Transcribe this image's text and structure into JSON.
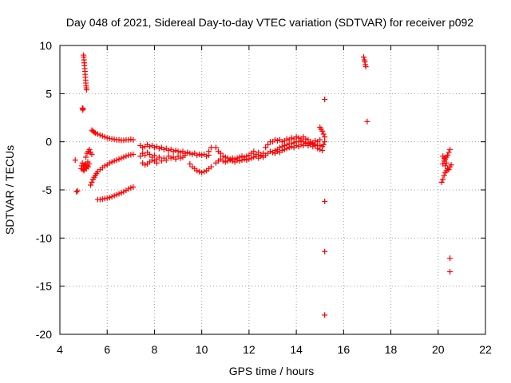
{
  "chart_data": {
    "type": "scatter",
    "title": "Day 048 of 2021, Sidereal Day-to-day VTEC variation (SDTVAR) for receiver p092",
    "xlabel": "GPS time / hours",
    "ylabel": "SDTVAR / TECUs",
    "xlim": [
      4,
      22
    ],
    "ylim": [
      -20,
      10
    ],
    "xticks": [
      "4",
      "6",
      "8",
      "10",
      "12",
      "14",
      "16",
      "18",
      "20",
      "22"
    ],
    "yticks": [
      "10",
      "5",
      "0",
      "-5",
      "-10",
      "-15",
      "-20"
    ],
    "grid": true,
    "marker": "+",
    "series": [
      {
        "name": "SDTVAR",
        "color": "#ff0000",
        "points": [
          [
            4.65,
            -1.9
          ],
          [
            4.7,
            -5.2
          ],
          [
            4.75,
            -5.1
          ],
          [
            4.9,
            -2.8
          ],
          [
            4.92,
            -2.5
          ],
          [
            4.95,
            -2.2
          ],
          [
            4.98,
            -2.9
          ],
          [
            5.0,
            -2.6
          ],
          [
            5.02,
            -3.0
          ],
          [
            5.05,
            -2.4
          ],
          [
            5.08,
            -2.7
          ],
          [
            5.1,
            -2.3
          ],
          [
            5.12,
            -2.8
          ],
          [
            5.15,
            -2.5
          ],
          [
            5.18,
            -2.1
          ],
          [
            5.2,
            -2.6
          ],
          [
            5.25,
            -2.3
          ],
          [
            4.95,
            3.5
          ],
          [
            4.97,
            3.3
          ],
          [
            4.98,
            3.4
          ],
          [
            5.0,
            9.0
          ],
          [
            5.01,
            8.8
          ],
          [
            5.02,
            8.5
          ],
          [
            5.03,
            8.2
          ],
          [
            5.04,
            7.9
          ],
          [
            5.05,
            7.6
          ],
          [
            5.06,
            7.3
          ],
          [
            5.07,
            7.0
          ],
          [
            5.08,
            6.7
          ],
          [
            5.09,
            6.4
          ],
          [
            5.1,
            6.1
          ],
          [
            5.11,
            5.8
          ],
          [
            5.12,
            5.6
          ],
          [
            5.13,
            5.4
          ],
          [
            5.1,
            -1.6
          ],
          [
            5.15,
            -1.2
          ],
          [
            5.2,
            -1.0
          ],
          [
            5.25,
            -0.8
          ],
          [
            5.3,
            -1.1
          ],
          [
            5.35,
            -1.3
          ],
          [
            5.35,
            1.2
          ],
          [
            5.4,
            1.1
          ],
          [
            5.45,
            1.0
          ],
          [
            5.5,
            0.9
          ],
          [
            5.6,
            0.8
          ],
          [
            5.7,
            0.7
          ],
          [
            5.8,
            0.6
          ],
          [
            5.9,
            0.5
          ],
          [
            6.0,
            0.4
          ],
          [
            6.1,
            0.35
          ],
          [
            6.2,
            0.3
          ],
          [
            6.3,
            0.25
          ],
          [
            6.4,
            0.2
          ],
          [
            6.5,
            0.2
          ],
          [
            6.6,
            0.15
          ],
          [
            6.7,
            0.15
          ],
          [
            6.8,
            0.2
          ],
          [
            6.9,
            0.2
          ],
          [
            7.0,
            0.25
          ],
          [
            7.1,
            0.2
          ],
          [
            5.3,
            -4.5
          ],
          [
            5.35,
            -4.2
          ],
          [
            5.4,
            -3.9
          ],
          [
            5.45,
            -3.7
          ],
          [
            5.5,
            -3.5
          ],
          [
            5.55,
            -3.3
          ],
          [
            5.6,
            -3.1
          ],
          [
            5.7,
            -2.9
          ],
          [
            5.8,
            -2.7
          ],
          [
            5.9,
            -2.5
          ],
          [
            6.0,
            -2.4
          ],
          [
            6.1,
            -2.2
          ],
          [
            6.2,
            -2.1
          ],
          [
            6.3,
            -2.0
          ],
          [
            6.4,
            -1.9
          ],
          [
            6.5,
            -1.8
          ],
          [
            6.6,
            -1.7
          ],
          [
            6.7,
            -1.6
          ],
          [
            6.8,
            -1.5
          ],
          [
            6.9,
            -1.4
          ],
          [
            7.0,
            -1.35
          ],
          [
            7.1,
            -1.3
          ],
          [
            5.6,
            -6.0
          ],
          [
            5.7,
            -6.0
          ],
          [
            5.8,
            -5.95
          ],
          [
            5.9,
            -5.9
          ],
          [
            6.0,
            -5.85
          ],
          [
            6.1,
            -5.8
          ],
          [
            6.2,
            -5.7
          ],
          [
            6.3,
            -5.6
          ],
          [
            6.4,
            -5.5
          ],
          [
            6.5,
            -5.4
          ],
          [
            6.6,
            -5.3
          ],
          [
            6.7,
            -5.2
          ],
          [
            6.8,
            -5.05
          ],
          [
            6.9,
            -4.9
          ],
          [
            7.0,
            -4.8
          ],
          [
            7.1,
            -4.7
          ],
          [
            7.4,
            -0.4
          ],
          [
            7.5,
            -0.6
          ],
          [
            7.6,
            -0.5
          ],
          [
            7.7,
            -0.3
          ],
          [
            7.8,
            -0.5
          ],
          [
            7.9,
            -0.4
          ],
          [
            8.0,
            -0.6
          ],
          [
            8.1,
            -0.5
          ],
          [
            8.2,
            -0.7
          ],
          [
            8.3,
            -0.6
          ],
          [
            8.4,
            -0.8
          ],
          [
            8.5,
            -0.7
          ],
          [
            8.6,
            -0.9
          ],
          [
            8.7,
            -0.8
          ],
          [
            8.8,
            -1.0
          ],
          [
            8.9,
            -0.9
          ],
          [
            9.0,
            -1.0
          ],
          [
            9.1,
            -1.1
          ],
          [
            9.2,
            -1.0
          ],
          [
            9.3,
            -1.2
          ],
          [
            9.4,
            -1.1
          ],
          [
            9.5,
            -1.2
          ],
          [
            9.6,
            -1.3
          ],
          [
            9.7,
            -1.2
          ],
          [
            9.8,
            -1.4
          ],
          [
            9.9,
            -1.3
          ],
          [
            10.0,
            -1.4
          ],
          [
            10.1,
            -1.3
          ],
          [
            10.2,
            -1.5
          ],
          [
            10.3,
            -1.4
          ],
          [
            7.4,
            -1.5
          ],
          [
            7.5,
            -1.2
          ],
          [
            7.6,
            -1.4
          ],
          [
            7.7,
            -1.1
          ],
          [
            7.8,
            -1.3
          ],
          [
            7.9,
            -1.6
          ],
          [
            8.0,
            -1.4
          ],
          [
            8.1,
            -1.8
          ],
          [
            8.2,
            -1.6
          ],
          [
            8.3,
            -2.0
          ],
          [
            8.4,
            -1.7
          ],
          [
            8.5,
            -1.9
          ],
          [
            8.6,
            -1.5
          ],
          [
            8.7,
            -1.7
          ],
          [
            7.5,
            -2.2
          ],
          [
            7.6,
            -2.4
          ],
          [
            7.7,
            -2.3
          ],
          [
            7.8,
            -2.1
          ],
          [
            7.9,
            -1.9
          ],
          [
            8.0,
            -2.0
          ],
          [
            8.1,
            -2.2
          ],
          [
            8.8,
            -1.6
          ],
          [
            8.9,
            -1.8
          ],
          [
            9.0,
            -1.5
          ],
          [
            9.1,
            -1.7
          ],
          [
            9.2,
            -1.6
          ],
          [
            9.3,
            -1.4
          ],
          [
            9.5,
            -2.3
          ],
          [
            9.6,
            -2.6
          ],
          [
            9.7,
            -2.8
          ],
          [
            9.8,
            -3.0
          ],
          [
            9.9,
            -3.1
          ],
          [
            10.0,
            -3.2
          ],
          [
            10.1,
            -3.1
          ],
          [
            10.2,
            -3.0
          ],
          [
            10.3,
            -2.8
          ],
          [
            10.4,
            -2.6
          ],
          [
            10.3,
            -1.0
          ],
          [
            10.4,
            -0.6
          ],
          [
            10.6,
            -0.6
          ],
          [
            10.7,
            -1.0
          ],
          [
            10.8,
            -1.2
          ],
          [
            10.9,
            -1.5
          ],
          [
            11.0,
            -1.6
          ],
          [
            11.1,
            -1.7
          ],
          [
            11.2,
            -1.8
          ],
          [
            11.3,
            -1.7
          ],
          [
            11.4,
            -1.8
          ],
          [
            11.5,
            -1.7
          ],
          [
            11.6,
            -1.6
          ],
          [
            11.7,
            -1.5
          ],
          [
            11.8,
            -1.6
          ],
          [
            11.9,
            -1.5
          ],
          [
            12.0,
            -1.4
          ],
          [
            10.6,
            -2.2
          ],
          [
            10.7,
            -2.0
          ],
          [
            10.8,
            -1.8
          ],
          [
            10.9,
            -2.0
          ],
          [
            11.0,
            -2.1
          ],
          [
            11.1,
            -2.0
          ],
          [
            11.2,
            -1.9
          ],
          [
            11.3,
            -2.0
          ],
          [
            11.4,
            -2.1
          ],
          [
            11.5,
            -1.9
          ],
          [
            11.6,
            -2.0
          ],
          [
            11.7,
            -1.9
          ],
          [
            11.8,
            -1.8
          ],
          [
            11.9,
            -1.9
          ],
          [
            12.0,
            -1.8
          ],
          [
            12.1,
            -1.7
          ],
          [
            12.1,
            -1.2
          ],
          [
            12.2,
            -1.0
          ],
          [
            12.3,
            -1.3
          ],
          [
            12.4,
            -1.1
          ],
          [
            12.5,
            -1.4
          ],
          [
            12.6,
            -1.2
          ],
          [
            12.2,
            -1.6
          ],
          [
            12.3,
            -1.5
          ],
          [
            12.4,
            -1.7
          ],
          [
            12.5,
            -1.5
          ],
          [
            12.6,
            -1.6
          ],
          [
            12.7,
            -1.4
          ],
          [
            12.8,
            -1.2
          ],
          [
            12.9,
            -1.0
          ],
          [
            13.0,
            -1.1
          ],
          [
            13.1,
            -0.9
          ],
          [
            13.2,
            -0.8
          ],
          [
            13.3,
            -0.6
          ],
          [
            13.4,
            -0.5
          ],
          [
            13.5,
            -0.4
          ],
          [
            13.6,
            -0.3
          ],
          [
            13.7,
            -0.2
          ],
          [
            13.8,
            -0.2
          ],
          [
            13.9,
            -0.1
          ],
          [
            14.0,
            0.0
          ],
          [
            14.1,
            0.0
          ],
          [
            14.2,
            0.1
          ],
          [
            14.3,
            0.0
          ],
          [
            14.4,
            -0.1
          ],
          [
            14.5,
            -0.2
          ],
          [
            14.6,
            -0.1
          ],
          [
            14.7,
            -0.2
          ],
          [
            14.8,
            -0.3
          ],
          [
            14.9,
            -0.4
          ],
          [
            15.0,
            -0.4
          ],
          [
            15.1,
            -0.5
          ],
          [
            12.7,
            -0.6
          ],
          [
            12.8,
            -0.3
          ],
          [
            12.9,
            0.0
          ],
          [
            13.0,
            0.0
          ],
          [
            13.1,
            0.2
          ],
          [
            13.2,
            0.1
          ],
          [
            13.3,
            0.2
          ],
          [
            13.4,
            0.0
          ],
          [
            13.5,
            0.1
          ],
          [
            13.6,
            0.3
          ],
          [
            13.7,
            0.2
          ],
          [
            13.8,
            0.4
          ],
          [
            13.9,
            0.3
          ],
          [
            14.0,
            0.5
          ],
          [
            14.1,
            0.4
          ],
          [
            14.2,
            0.3
          ],
          [
            14.3,
            0.5
          ],
          [
            14.4,
            0.3
          ],
          [
            14.5,
            0.2
          ],
          [
            14.6,
            0.0
          ],
          [
            14.7,
            -0.1
          ],
          [
            14.8,
            0.1
          ],
          [
            14.9,
            0.0
          ],
          [
            15.0,
            0.2
          ],
          [
            13.1,
            -1.2
          ],
          [
            13.2,
            -1.0
          ],
          [
            13.3,
            -1.1
          ],
          [
            13.4,
            -0.9
          ],
          [
            13.5,
            -0.8
          ],
          [
            13.6,
            -0.7
          ],
          [
            13.7,
            -0.6
          ],
          [
            13.8,
            -0.5
          ],
          [
            13.9,
            -0.6
          ],
          [
            14.0,
            -0.4
          ],
          [
            14.1,
            -0.5
          ],
          [
            14.2,
            -0.3
          ],
          [
            14.3,
            -0.4
          ],
          [
            14.4,
            -0.2
          ],
          [
            14.5,
            -0.4
          ],
          [
            14.6,
            -0.3
          ],
          [
            14.7,
            -0.5
          ],
          [
            14.8,
            -0.4
          ],
          [
            14.9,
            -0.7
          ],
          [
            15.0,
            -0.8
          ],
          [
            15.1,
            -0.9
          ],
          [
            15.0,
            1.5
          ],
          [
            15.05,
            1.3
          ],
          [
            15.1,
            1.1
          ],
          [
            15.15,
            0.8
          ],
          [
            15.2,
            0.5
          ],
          [
            15.2,
            0.0
          ],
          [
            15.15,
            -0.3
          ],
          [
            15.2,
            4.4
          ],
          [
            15.2,
            -6.2
          ],
          [
            15.2,
            -11.4
          ],
          [
            15.2,
            -18.0
          ],
          [
            16.85,
            8.8
          ],
          [
            16.88,
            8.5
          ],
          [
            16.9,
            8.3
          ],
          [
            16.92,
            8.0
          ],
          [
            16.94,
            7.8
          ],
          [
            17.0,
            2.1
          ],
          [
            20.15,
            -4.2
          ],
          [
            20.2,
            -3.9
          ],
          [
            20.25,
            -3.5
          ],
          [
            20.3,
            -3.2
          ],
          [
            20.35,
            -3.0
          ],
          [
            20.4,
            -2.8
          ],
          [
            20.45,
            -2.9
          ],
          [
            20.5,
            -2.6
          ],
          [
            20.2,
            -2.3
          ],
          [
            20.25,
            -2.0
          ],
          [
            20.3,
            -1.8
          ],
          [
            20.35,
            -1.6
          ],
          [
            20.4,
            -1.4
          ],
          [
            20.45,
            -1.1
          ],
          [
            20.5,
            -0.8
          ],
          [
            20.2,
            -1.5
          ],
          [
            20.25,
            -1.7
          ],
          [
            20.3,
            -2.5
          ],
          [
            20.35,
            -2.2
          ],
          [
            20.55,
            -2.4
          ],
          [
            20.5,
            -12.1
          ],
          [
            20.5,
            -13.5
          ]
        ]
      }
    ]
  }
}
